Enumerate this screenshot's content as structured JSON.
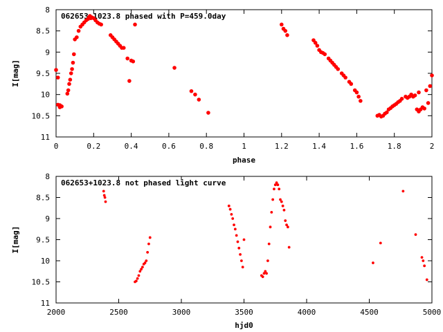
{
  "chart_data": [
    {
      "type": "scatter",
      "title": "062653+1023.8 phased with P=459.0day",
      "xlabel": "phase",
      "ylabel": "I[mag]",
      "xlim": [
        0,
        2
      ],
      "ylim": [
        8,
        11
      ],
      "y_inverted": true,
      "xticks": [
        "0",
        "0.2",
        "0.4",
        "0.6",
        "0.8",
        "1",
        "1.2",
        "1.4",
        "1.6",
        "1.8",
        "2"
      ],
      "yticks": [
        "8",
        "8.5",
        "9",
        "9.5",
        "10",
        "10.5",
        "11"
      ],
      "marker_color": "#ff0000",
      "grid": false,
      "x": [
        0.0,
        0.01,
        0.01,
        0.02,
        0.02,
        0.03,
        0.06,
        0.065,
        0.07,
        0.075,
        0.08,
        0.085,
        0.09,
        0.095,
        0.1,
        0.11,
        0.12,
        0.13,
        0.14,
        0.15,
        0.16,
        0.17,
        0.175,
        0.18,
        0.185,
        0.19,
        0.2,
        0.21,
        0.22,
        0.23,
        0.24,
        0.29,
        0.3,
        0.31,
        0.32,
        0.33,
        0.34,
        0.35,
        0.36,
        0.38,
        0.39,
        0.4,
        0.41,
        0.42,
        0.63,
        0.72,
        0.74,
        0.76,
        0.81,
        1.2,
        1.21,
        1.22,
        1.23,
        1.37,
        1.38,
        1.39,
        1.4,
        1.41,
        1.42,
        1.43,
        1.45,
        1.46,
        1.47,
        1.48,
        1.49,
        1.5,
        1.52,
        1.53,
        1.54,
        1.56,
        1.57,
        1.59,
        1.6,
        1.61,
        1.62,
        1.71,
        1.72,
        1.73,
        1.74,
        1.75,
        1.76,
        1.77,
        1.78,
        1.79,
        1.8,
        1.81,
        1.82,
        1.83,
        1.84,
        1.86,
        1.87,
        1.88,
        1.89,
        1.9,
        1.91,
        1.92,
        1.93,
        1.93,
        1.94,
        1.95,
        1.96,
        1.97,
        1.98,
        1.99,
        2.0
      ],
      "y": [
        9.42,
        9.6,
        10.24,
        10.25,
        10.3,
        10.28,
        9.98,
        9.9,
        9.75,
        9.65,
        9.5,
        9.4,
        9.25,
        9.05,
        8.7,
        8.65,
        8.5,
        8.4,
        8.35,
        8.3,
        8.25,
        8.22,
        8.18,
        8.15,
        8.2,
        8.18,
        8.2,
        8.25,
        8.3,
        8.33,
        8.35,
        8.6,
        8.65,
        8.7,
        8.75,
        8.8,
        8.85,
        8.9,
        8.9,
        9.15,
        9.68,
        9.2,
        9.22,
        8.35,
        9.37,
        9.92,
        10.0,
        10.12,
        10.43,
        8.35,
        8.45,
        8.5,
        8.6,
        8.72,
        8.78,
        8.85,
        8.95,
        9.0,
        9.02,
        9.05,
        9.15,
        9.2,
        9.25,
        9.3,
        9.35,
        9.4,
        9.5,
        9.55,
        9.6,
        9.7,
        9.75,
        9.9,
        9.95,
        10.05,
        10.15,
        10.5,
        10.48,
        10.52,
        10.5,
        10.45,
        10.42,
        10.35,
        10.32,
        10.28,
        10.25,
        10.22,
        10.18,
        10.15,
        10.1,
        10.05,
        10.08,
        10.05,
        10.0,
        10.05,
        10.02,
        10.35,
        9.95,
        10.4,
        10.35,
        10.3,
        10.33,
        9.9,
        10.2,
        9.8,
        9.55
      ]
    },
    {
      "type": "scatter",
      "title": "062653+1023.8 not phased light curve",
      "xlabel": "hjd0",
      "ylabel": "I[mag]",
      "xlim": [
        2000,
        5000
      ],
      "ylim": [
        8,
        11
      ],
      "y_inverted": true,
      "xticks": [
        "2000",
        "2500",
        "3000",
        "3500",
        "4000",
        "4500",
        "5000"
      ],
      "yticks": [
        "8",
        "8.5",
        "9",
        "9.5",
        "10",
        "10.5",
        "11"
      ],
      "marker_color": "#ff0000",
      "grid": false,
      "x": [
        2380,
        2385,
        2390,
        2395,
        2630,
        2640,
        2650,
        2660,
        2670,
        2680,
        2690,
        2700,
        2710,
        2720,
        2730,
        2740,
        2750,
        3380,
        3390,
        3400,
        3410,
        3420,
        3430,
        3440,
        3450,
        3460,
        3470,
        3480,
        3490,
        3500,
        3640,
        3650,
        3660,
        3670,
        3680,
        3690,
        3700,
        3710,
        3720,
        3730,
        3740,
        3750,
        3760,
        3770,
        3780,
        3790,
        3800,
        3810,
        3820,
        3830,
        3840,
        3850,
        3860,
        4530,
        4590,
        4770,
        4870,
        4920,
        4930,
        4940,
        4960
      ],
      "y": [
        8.35,
        8.45,
        8.5,
        8.6,
        10.5,
        10.48,
        10.42,
        10.35,
        10.25,
        10.2,
        10.15,
        10.08,
        10.05,
        10.0,
        9.8,
        9.6,
        9.45,
        8.7,
        8.78,
        8.9,
        9.0,
        9.15,
        9.25,
        9.4,
        9.55,
        9.7,
        9.85,
        10.0,
        10.15,
        9.5,
        10.35,
        10.38,
        10.3,
        10.25,
        10.3,
        10.0,
        9.6,
        9.2,
        8.85,
        8.55,
        8.3,
        8.2,
        8.15,
        8.2,
        8.3,
        8.55,
        8.6,
        8.7,
        8.8,
        9.05,
        9.15,
        9.2,
        9.68,
        10.05,
        9.58,
        8.35,
        9.38,
        9.92,
        10.0,
        10.12,
        10.45
      ]
    }
  ]
}
